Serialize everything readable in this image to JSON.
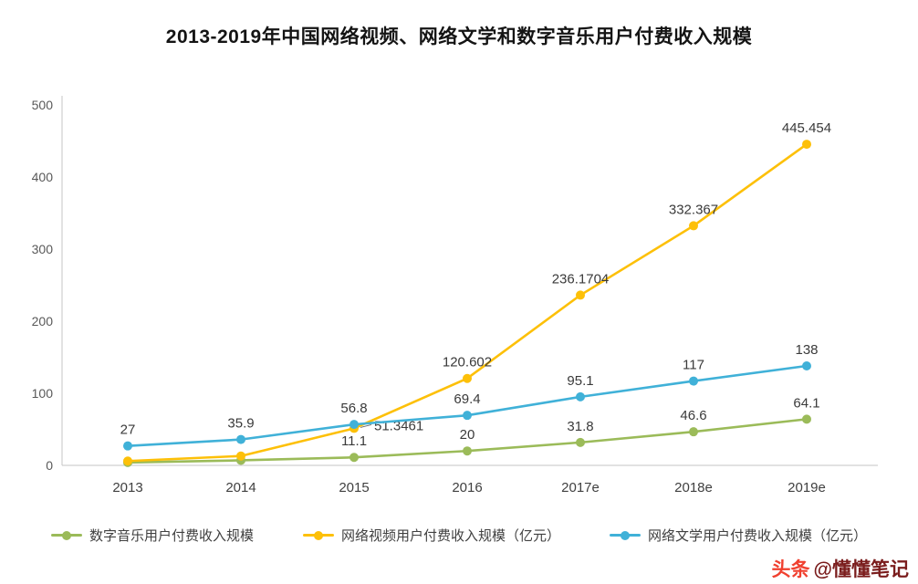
{
  "page": {
    "title": "2013-2019年中国网络视频、网络文学和数字音乐用户付费收入规模"
  },
  "watermark": {
    "brand": "头条",
    "handle": "@懂懂笔记"
  },
  "chart_data": {
    "type": "line",
    "title": "2013-2019年中国网络视频、网络文学和数字音乐用户付费收入规模",
    "categories": [
      "2013",
      "2014",
      "2015",
      "2016",
      "2017e",
      "2018e",
      "2019e"
    ],
    "xlabel": "",
    "ylabel": "",
    "ylim": [
      0,
      500
    ],
    "yticks": [
      0,
      100,
      200,
      300,
      400,
      500
    ],
    "grid": false,
    "legend_position": "bottom",
    "series": [
      {
        "name": "数字音乐用户付费收入规模",
        "color": "#9bbb59",
        "values": [
          4,
          7,
          11.1,
          20,
          31.8,
          46.6,
          64.1
        ],
        "labels": [
          "",
          "",
          "11.1",
          "20",
          "31.8",
          "46.6",
          "64.1"
        ]
      },
      {
        "name": "网络视频用户付费收入规模（亿元）",
        "color": "#fdc008",
        "values": [
          6,
          13,
          51.3461,
          120.602,
          236.1704,
          332.367,
          445.454
        ],
        "labels": [
          "",
          "",
          "51.3461",
          "120.602",
          "236.1704",
          "332.367",
          "445.454"
        ]
      },
      {
        "name": "网络文学用户付费收入规模（亿元）",
        "color": "#40b1d8",
        "values": [
          27,
          35.9,
          56.8,
          69.4,
          95.1,
          117,
          138
        ],
        "labels": [
          "27",
          "35.9",
          "56.8",
          "69.4",
          "95.1",
          "117",
          "138"
        ]
      }
    ]
  }
}
